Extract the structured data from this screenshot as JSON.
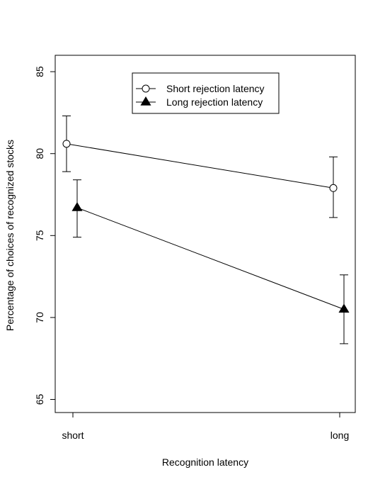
{
  "chart_data": {
    "type": "line",
    "title": "",
    "xlabel": "Recognition latency",
    "ylabel": "Percentage of choices of recognized stocks",
    "categories": [
      "short",
      "long"
    ],
    "ylim": [
      64.2,
      86.0
    ],
    "yticks": [
      65,
      70,
      75,
      80,
      85
    ],
    "grid": false,
    "legend_position": "top-center",
    "series": [
      {
        "name": "Short rejection latency",
        "marker": "open-circle",
        "values": [
          80.6,
          77.9
        ],
        "err_low": [
          78.9,
          76.1
        ],
        "err_high": [
          82.3,
          79.8
        ]
      },
      {
        "name": "Long rejection latency",
        "marker": "filled-triangle",
        "values": [
          76.7,
          70.5
        ],
        "err_low": [
          74.9,
          68.4
        ],
        "err_high": [
          78.4,
          72.6
        ]
      }
    ]
  }
}
